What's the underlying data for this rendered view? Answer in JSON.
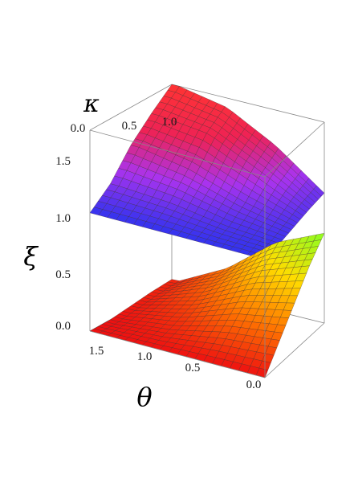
{
  "chart_data": {
    "type": "surface3d",
    "axes": {
      "x": {
        "label": "κ",
        "ticks": [
          "0.0",
          "0.5",
          "1.0"
        ],
        "range": [
          0,
          1
        ]
      },
      "y": {
        "label": "θ",
        "ticks": [
          "1.5",
          "1.0",
          "0.5",
          "0.0"
        ],
        "range": [
          0,
          1.5708
        ]
      },
      "z": {
        "label": "ξ",
        "ticks": [
          "0.0",
          "0.5",
          "1.0",
          "1.5"
        ],
        "range": [
          0,
          1.7
        ]
      }
    },
    "box": true,
    "grid_mesh": 20,
    "series": [
      {
        "surface": "upper",
        "color_range": [
          "#3333ee",
          "#aa33ee",
          "#ee2255",
          "#ff3333"
        ],
        "values_by_kappa_at_theta": {
          "0.0": [
            1.0,
            1.02,
            1.05,
            1.08,
            1.1
          ],
          "0.5": [
            1.0,
            1.05,
            1.15,
            1.3,
            1.4
          ],
          "1.0": [
            1.0,
            1.12,
            1.3,
            1.5,
            1.62
          ],
          "1.5": [
            1.0,
            1.15,
            1.38,
            1.55,
            1.7
          ]
        }
      },
      {
        "surface": "lower",
        "color_range": [
          "#ee1111",
          "#ff7700",
          "#ffdd00",
          "#88ff22"
        ],
        "values_by_kappa_at_theta": {
          "0.0": [
            0.0,
            0.2,
            0.4,
            0.6,
            0.76
          ],
          "0.5": [
            0.0,
            0.15,
            0.3,
            0.45,
            0.58
          ],
          "1.0": [
            0.0,
            0.05,
            0.12,
            0.2,
            0.26
          ],
          "1.5": [
            0.0,
            0.0,
            0.02,
            0.04,
            0.05
          ]
        }
      }
    ]
  }
}
